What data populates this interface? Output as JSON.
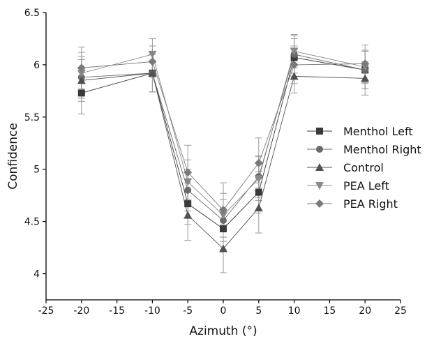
{
  "chart_data": {
    "type": "line",
    "title": "",
    "xlabel": "Azimuth (°)",
    "ylabel": "Confidence",
    "xlim": [
      -25,
      25
    ],
    "ylim": [
      3.75,
      6.5
    ],
    "xticks": [
      -25,
      -20,
      -15,
      -10,
      -5,
      0,
      5,
      10,
      15,
      20,
      25
    ],
    "yticks": [
      4,
      4.5,
      5,
      5.5,
      6,
      6.5
    ],
    "x": [
      -20,
      -10,
      -5,
      0,
      5,
      10,
      20
    ],
    "grid": false,
    "legend_position": "right",
    "series": [
      {
        "name": "Menthol Left",
        "marker": "square",
        "color": "#3a3a3a",
        "values": [
          5.73,
          5.92,
          4.67,
          4.43,
          4.78,
          6.07,
          5.95
        ],
        "errors": [
          0.2,
          0.18,
          0.2,
          0.2,
          0.2,
          0.18,
          0.18
        ]
      },
      {
        "name": "Menthol Right",
        "marker": "circle",
        "color": "#6a6a6a",
        "values": [
          5.88,
          5.92,
          4.8,
          4.51,
          4.93,
          6.1,
          5.95
        ],
        "errors": [
          0.2,
          0.18,
          0.2,
          0.2,
          0.2,
          0.18,
          0.18
        ]
      },
      {
        "name": "Control",
        "marker": "triangle-up",
        "color": "#505050",
        "values": [
          5.85,
          5.92,
          4.56,
          4.24,
          4.63,
          5.89,
          5.87
        ],
        "errors": [
          0.2,
          0.18,
          0.24,
          0.23,
          0.24,
          0.16,
          0.16
        ]
      },
      {
        "name": "PEA Left",
        "marker": "triangle-down",
        "color": "#888888",
        "values": [
          5.92,
          6.1,
          4.88,
          4.56,
          4.91,
          6.13,
          5.98
        ],
        "errors": [
          0.2,
          0.15,
          0.21,
          0.21,
          0.21,
          0.16,
          0.16
        ]
      },
      {
        "name": "PEA Right",
        "marker": "diamond",
        "color": "#7a7a7a",
        "values": [
          5.97,
          6.03,
          4.97,
          4.61,
          5.06,
          6.0,
          6.01
        ],
        "errors": [
          0.2,
          0.15,
          0.26,
          0.26,
          0.24,
          0.18,
          0.18
        ]
      }
    ]
  }
}
